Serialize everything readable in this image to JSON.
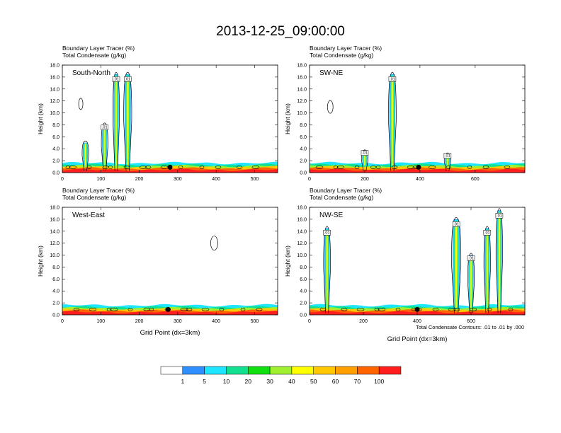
{
  "title": "2013-12-25_09:00:00",
  "colors": {
    "levels": [
      "#ffffff",
      "#2f8fff",
      "#1ee6ff",
      "#10e090",
      "#10e010",
      "#a0f030",
      "#ffff00",
      "#ffc800",
      "#ffa000",
      "#ff6400",
      "#ff1e1e"
    ],
    "contour": "#000000",
    "frame": "#000000"
  },
  "colorbar_labels": [
    "1",
    "5",
    "10",
    "20",
    "30",
    "40",
    "50",
    "60",
    "70",
    "100"
  ],
  "bottom_note": "Total Condensate Contours: .01 to .01 by .000",
  "chart_data": [
    {
      "type": "heatmap",
      "panel_label": "South-North",
      "subtitle_line1": "Boundary Layer Tracer   (%)",
      "subtitle_line2": "Total Condensate   (g/kg)",
      "ylabel": "Height (km)",
      "xlabel": "",
      "xlim": [
        0,
        560
      ],
      "ylim": [
        0,
        18
      ],
      "xticks": [
        0,
        100,
        200,
        300,
        400,
        500
      ],
      "yticks": [
        "0.0",
        "2.0",
        "4.0",
        "6.0",
        "8.0",
        "10.0",
        "12.0",
        "14.0",
        "16.0",
        "18.0"
      ],
      "contour_labels": [
        ".01",
        ".01",
        ".01"
      ],
      "marker_x": 280,
      "plumes": [
        {
          "x": 110,
          "width": 14,
          "top": 8.0
        },
        {
          "x": 140,
          "width": 12,
          "top": 16.5
        },
        {
          "x": 170,
          "width": 18,
          "top": 16.5
        },
        {
          "x": 60,
          "width": 10,
          "top": 5.0
        }
      ]
    },
    {
      "type": "heatmap",
      "panel_label": "SW-NE",
      "subtitle_line1": "Boundary Layer Tracer   (%)",
      "subtitle_line2": "Total Condensate   (g/kg)",
      "ylabel": "Height (km)",
      "xlabel": "",
      "xlim": [
        0,
        780
      ],
      "ylim": [
        0,
        18
      ],
      "xticks": [
        0,
        200,
        400,
        600
      ],
      "yticks": [
        "0.0",
        "2.0",
        "4.0",
        "6.0",
        "8.0",
        "10.0",
        "12.0",
        "14.0",
        "16.0",
        "18.0"
      ],
      "contour_labels": [
        ".01",
        ".01",
        ".01"
      ],
      "marker_x": 395,
      "plumes": [
        {
          "x": 300,
          "width": 24,
          "top": 16.5
        },
        {
          "x": 500,
          "width": 8,
          "top": 3.0
        },
        {
          "x": 200,
          "width": 8,
          "top": 3.5
        }
      ]
    },
    {
      "type": "heatmap",
      "panel_label": "West-East",
      "subtitle_line1": "Boundary Layer Tracer   (%)",
      "subtitle_line2": "Total Condensate   (g/kg)",
      "ylabel": "Height (km)",
      "xlabel": "Grid Point (dx=3km)",
      "xlim": [
        0,
        560
      ],
      "ylim": [
        0,
        18
      ],
      "xticks": [
        0,
        100,
        200,
        300,
        400,
        500
      ],
      "yticks": [
        "0.0",
        "2.0",
        "4.0",
        "6.0",
        "8.0",
        "10.0",
        "12.0",
        "14.0",
        "16.0",
        "18.0"
      ],
      "contour_labels": [],
      "marker_x": 275,
      "plumes": []
    },
    {
      "type": "heatmap",
      "panel_label": "NW-SE",
      "subtitle_line1": "Boundary Layer Tracer   (%)",
      "subtitle_line2": "Total Condensate   (g/kg)",
      "ylabel": "Height (km)",
      "xlabel": "Grid Point (dx=3km)",
      "xlim": [
        0,
        800
      ],
      "ylim": [
        0,
        18
      ],
      "xticks": [
        0,
        200,
        400,
        600
      ],
      "yticks": [
        "0.0",
        "2.0",
        "4.0",
        "6.0",
        "8.0",
        "10.0",
        "12.0",
        "14.0",
        "16.0",
        "18.0"
      ],
      "contour_labels": [
        ".01",
        ".01",
        ".01",
        ".01",
        ".01"
      ],
      "marker_x": 400,
      "plumes": [
        {
          "x": 65,
          "width": 22,
          "top": 14.5
        },
        {
          "x": 545,
          "width": 30,
          "top": 16.0
        },
        {
          "x": 600,
          "width": 14,
          "top": 10.0
        },
        {
          "x": 660,
          "width": 20,
          "top": 14.5
        },
        {
          "x": 705,
          "width": 14,
          "top": 17.5
        }
      ]
    }
  ]
}
